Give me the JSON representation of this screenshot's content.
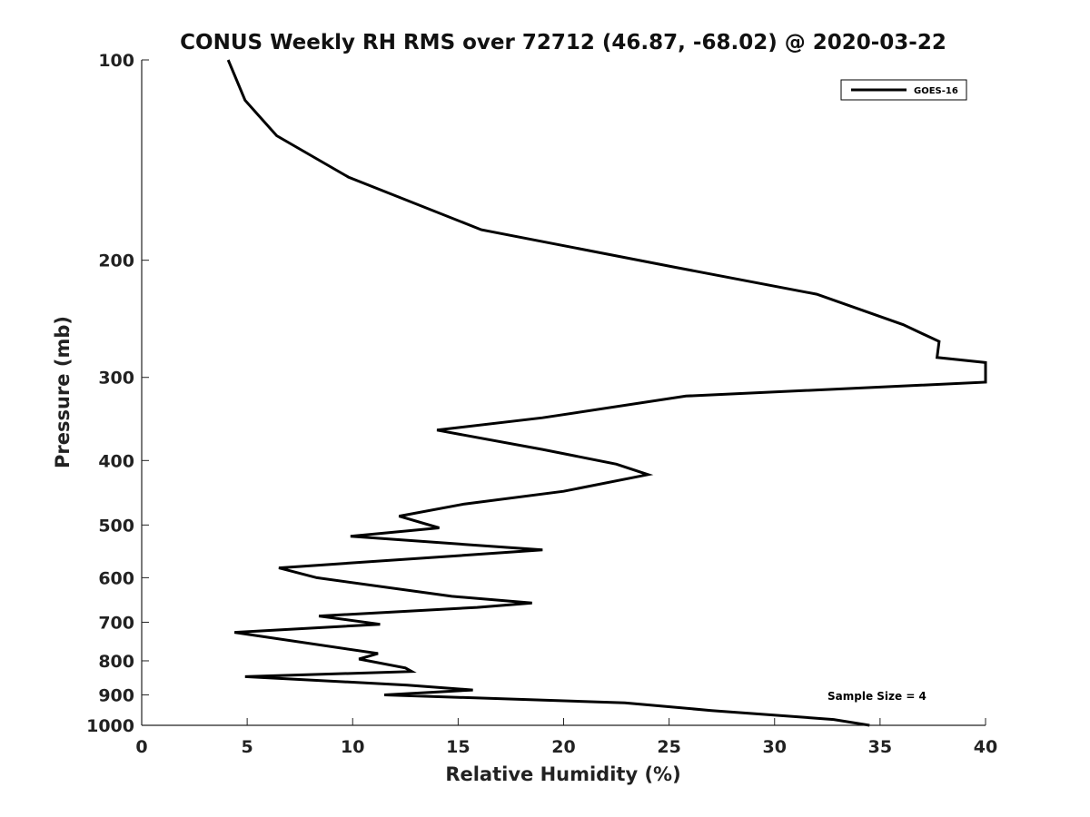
{
  "chart_data": {
    "type": "line",
    "title": "CONUS Weekly RH RMS over 72712 (46.87, -68.02) @ 2020-03-22",
    "xlabel": "Relative Humidity (%)",
    "ylabel": "Pressure (mb)",
    "xlim": [
      0,
      40
    ],
    "ylim": [
      100,
      1000
    ],
    "y_scale": "log",
    "y_reversed": true,
    "x_ticks": [
      0,
      5,
      10,
      15,
      20,
      25,
      30,
      35,
      40
    ],
    "x_tick_labels": [
      "0",
      "5",
      "10",
      "15",
      "20",
      "25",
      "30",
      "35",
      "40"
    ],
    "y_ticks": [
      100,
      200,
      300,
      400,
      500,
      600,
      700,
      800,
      900,
      1000
    ],
    "y_tick_labels": [
      "100",
      "200",
      "300",
      "400",
      "500",
      "600",
      "700",
      "800",
      "900",
      "1000"
    ],
    "grid": false,
    "legend_position": "top-right",
    "annotation": "Sample Size = 4",
    "series": [
      {
        "name": "GOES-16",
        "color": "#000000",
        "points": [
          [
            4.1,
            100
          ],
          [
            4.9,
            115
          ],
          [
            6.4,
            130
          ],
          [
            9.8,
            150
          ],
          [
            16.1,
            180
          ],
          [
            25.3,
            205
          ],
          [
            32.0,
            225
          ],
          [
            36.1,
            250
          ],
          [
            37.8,
            265
          ],
          [
            37.7,
            280
          ],
          [
            40.0,
            285
          ],
          [
            40.0,
            305
          ],
          [
            25.8,
            320
          ],
          [
            19.0,
            345
          ],
          [
            14.0,
            360
          ],
          [
            19.0,
            385
          ],
          [
            22.5,
            405
          ],
          [
            24.0,
            420
          ],
          [
            20.0,
            445
          ],
          [
            15.3,
            465
          ],
          [
            12.2,
            485
          ],
          [
            14.1,
            505
          ],
          [
            9.9,
            520
          ],
          [
            19.0,
            545
          ],
          [
            6.5,
            580
          ],
          [
            8.3,
            600
          ],
          [
            14.7,
            640
          ],
          [
            18.5,
            655
          ],
          [
            15.9,
            665
          ],
          [
            8.4,
            685
          ],
          [
            11.3,
            705
          ],
          [
            4.4,
            725
          ],
          [
            11.2,
            780
          ],
          [
            10.3,
            795
          ],
          [
            12.5,
            820
          ],
          [
            12.8,
            830
          ],
          [
            4.9,
            845
          ],
          [
            12.6,
            870
          ],
          [
            15.7,
            885
          ],
          [
            11.5,
            900
          ],
          [
            22.9,
            925
          ],
          [
            27.0,
            950
          ],
          [
            32.8,
            980
          ],
          [
            34.5,
            1000
          ]
        ]
      }
    ]
  }
}
